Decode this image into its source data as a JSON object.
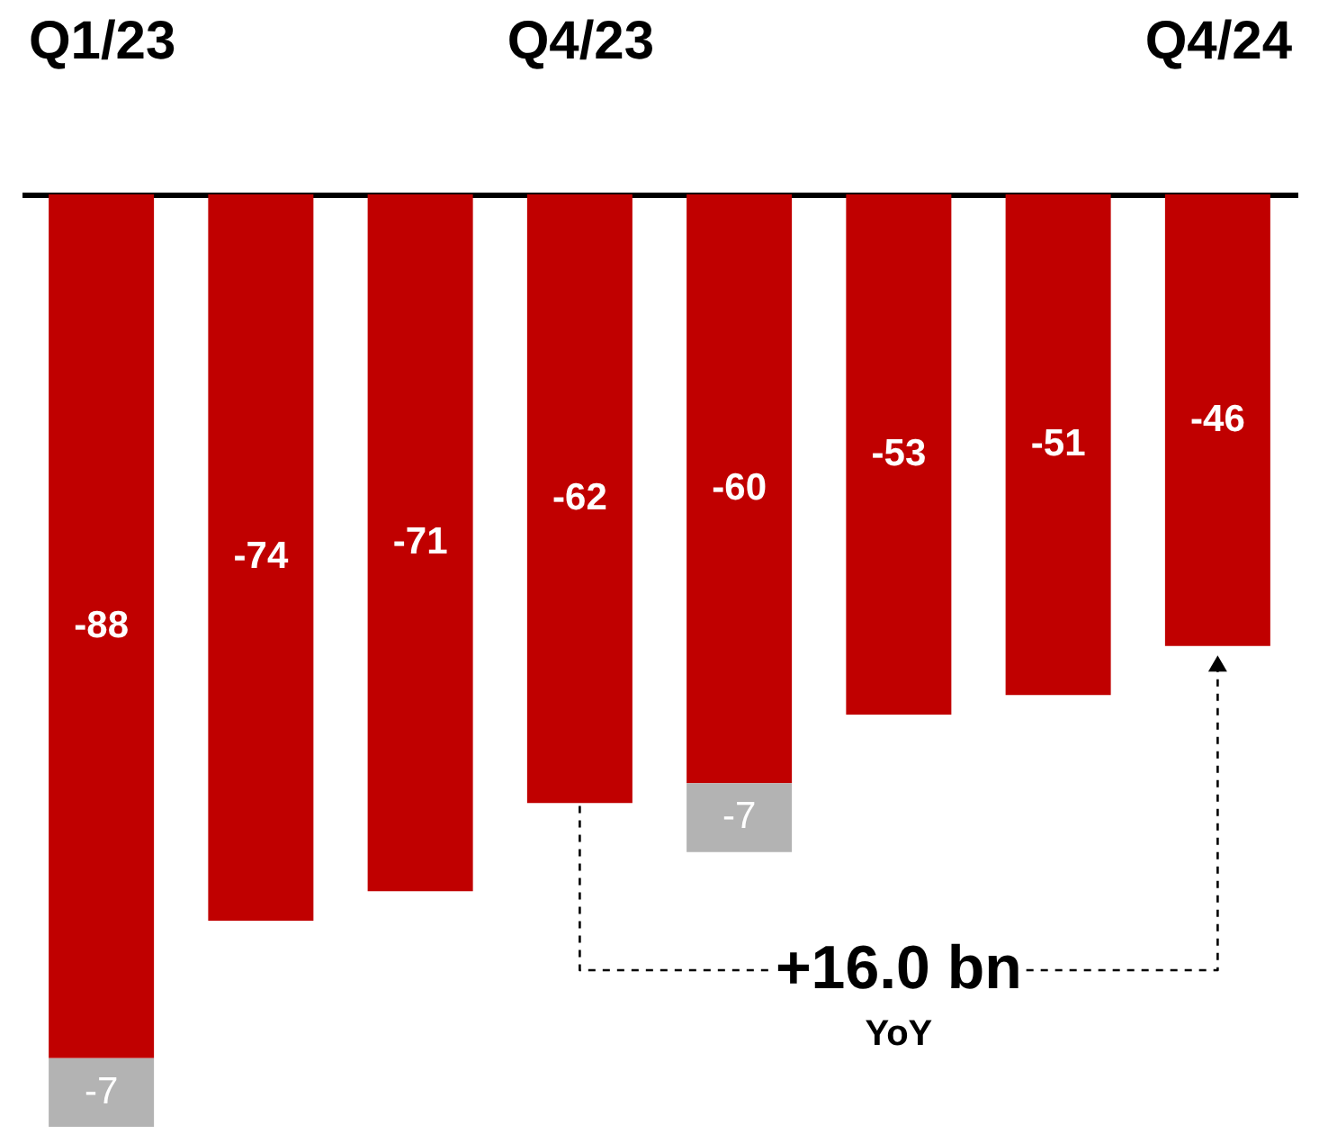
{
  "chart_data": {
    "type": "bar",
    "stacked": true,
    "data_labels": true,
    "tick_labels": "x",
    "grid": false,
    "categories": [
      "Q1/23",
      null,
      null,
      "Q4/23",
      null,
      null,
      null,
      "Q4/24"
    ],
    "ylim": [
      -95,
      0
    ],
    "series": [
      {
        "color": "#c00000",
        "values": [
          -88,
          -74,
          -71,
          -62,
          -60,
          -53,
          -51,
          -46
        ]
      },
      {
        "color": "#b3b3b3",
        "values": [
          -7,
          null,
          null,
          null,
          -7,
          null,
          null,
          null
        ]
      }
    ],
    "annotations": [
      "+16.0 bn",
      "YoY"
    ]
  }
}
